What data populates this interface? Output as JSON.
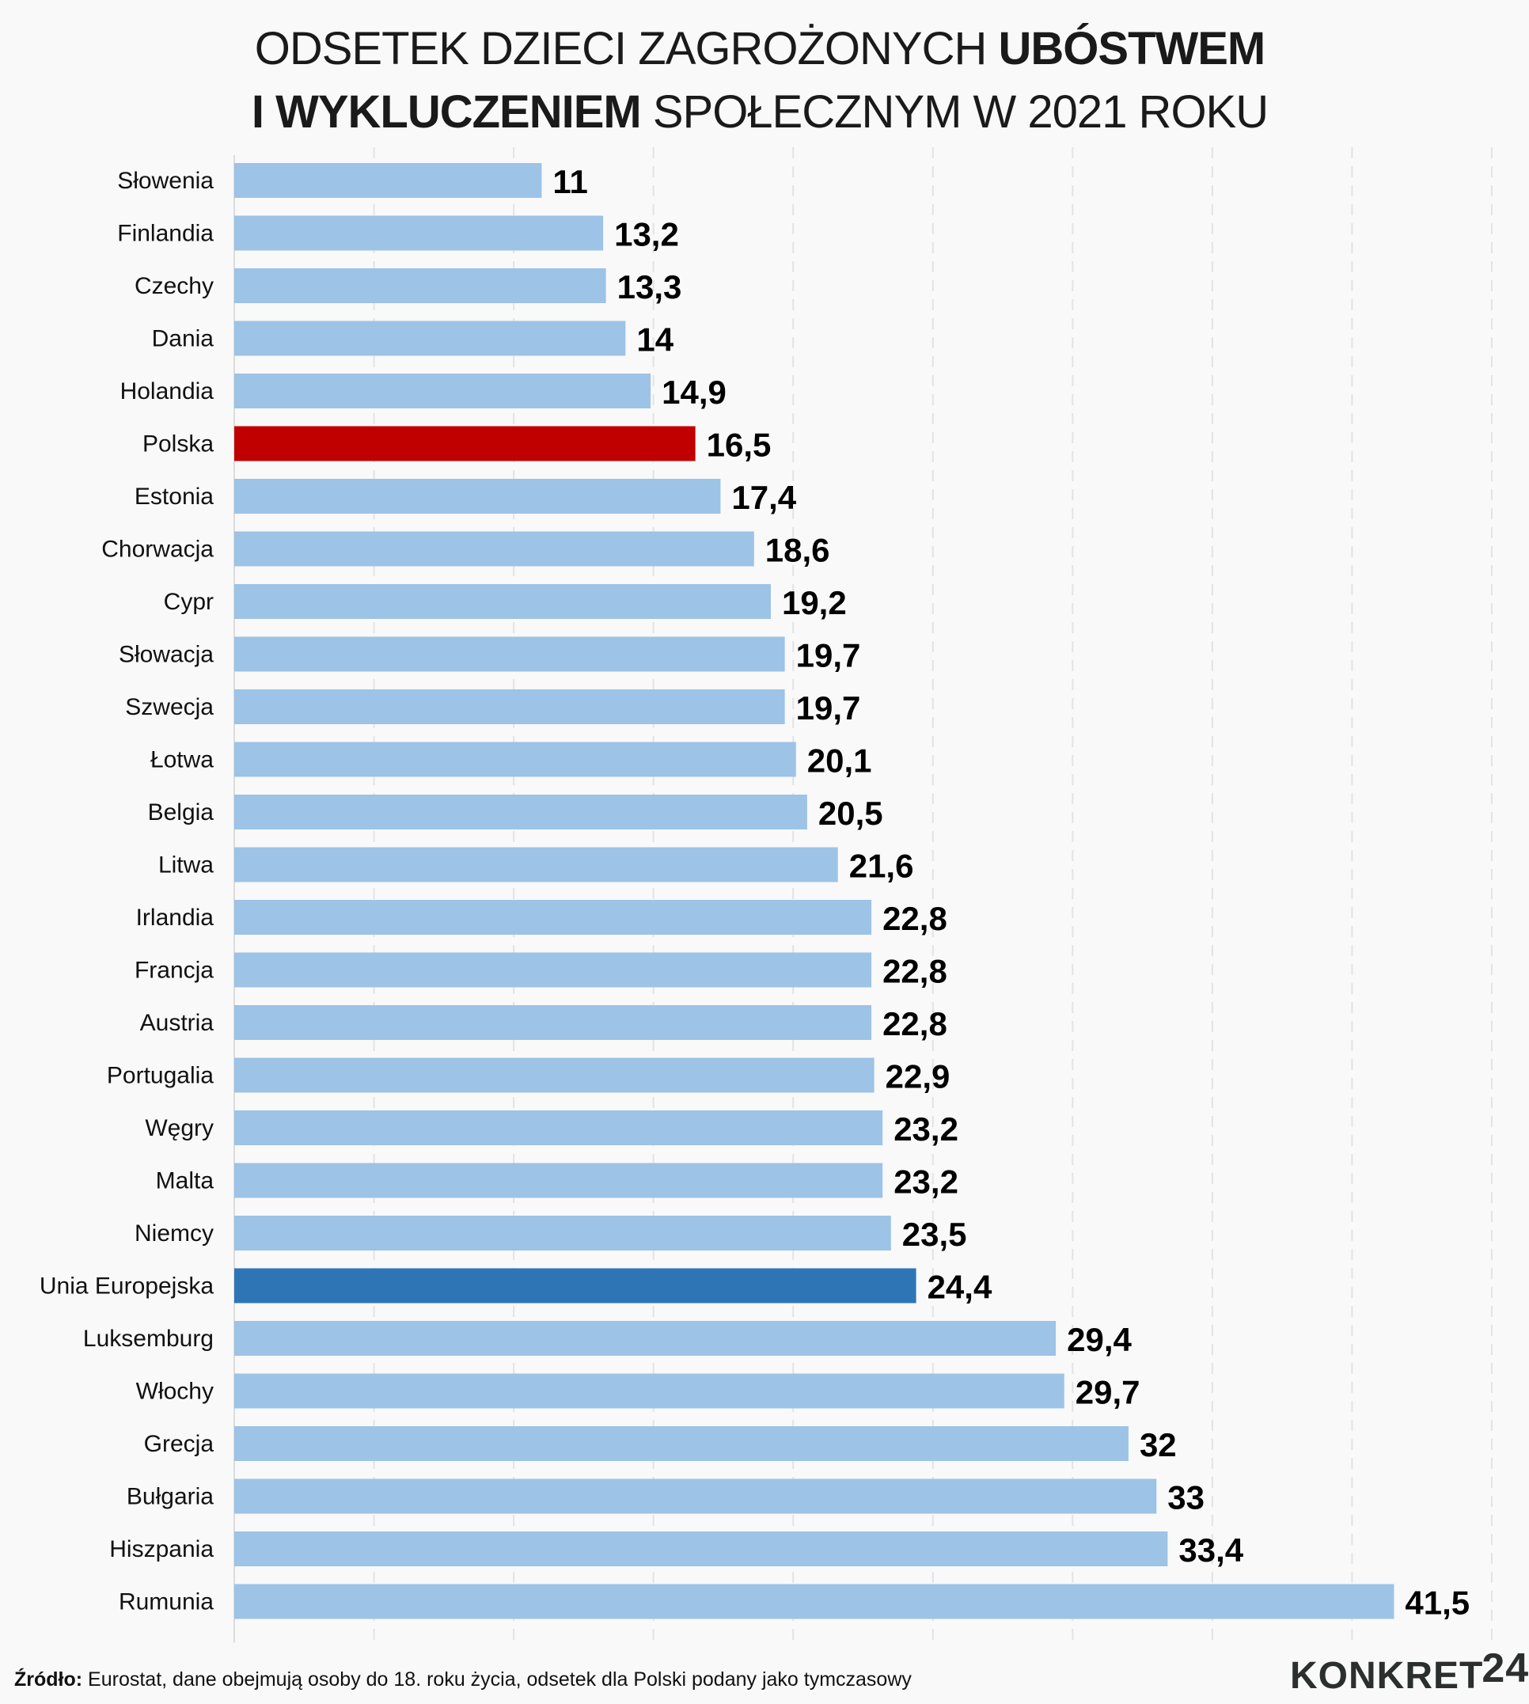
{
  "title": {
    "line1_light": "ODSETEK DZIECI ZAGROŻONYCH ",
    "line1_bold": "UBÓSTWEM",
    "line2_bold": "I WYKLUCZENIEM",
    "line2_light": " SPOŁECZNYM W 2021 ROKU"
  },
  "footer": {
    "source_label": "Źródło:",
    "source_text": " Eurostat, dane obejmują osoby do 18. roku życia, odsetek dla Polski podany jako tymczasowy"
  },
  "logo": {
    "text": "KONKRET",
    "number": "24"
  },
  "colors": {
    "default_bar": "#9dc3e6",
    "poland_bar": "#c00000",
    "eu_bar": "#2e75b6",
    "grid": "#e3e3e3"
  },
  "chart_data": {
    "type": "bar",
    "orientation": "horizontal",
    "xlim": [
      0,
      45
    ],
    "grid": true,
    "categories": [
      "Słowenia",
      "Finlandia",
      "Czechy",
      "Dania",
      "Holandia",
      "Polska",
      "Estonia",
      "Chorwacja",
      "Cypr",
      "Słowacja",
      "Szwecja",
      "Łotwa",
      "Belgia",
      "Litwa",
      "Irlandia",
      "Francja",
      "Austria",
      "Portugalia",
      "Węgry",
      "Malta",
      "Niemcy",
      "Unia Europejska",
      "Luksemburg",
      "Włochy",
      "Grecja",
      "Bułgaria",
      "Hiszpania",
      "Rumunia"
    ],
    "values": [
      11,
      13.2,
      13.3,
      14,
      14.9,
      16.5,
      17.4,
      18.6,
      19.2,
      19.7,
      19.7,
      20.1,
      20.5,
      21.6,
      22.8,
      22.8,
      22.8,
      22.9,
      23.2,
      23.2,
      23.5,
      24.4,
      29.4,
      29.7,
      32,
      33,
      33.4,
      41.5
    ],
    "value_labels": [
      "11",
      "13,2",
      "13,3",
      "14",
      "14,9",
      "16,5",
      "17,4",
      "18,6",
      "19,2",
      "19,7",
      "19,7",
      "20,1",
      "20,5",
      "21,6",
      "22,8",
      "22,8",
      "22,8",
      "22,9",
      "23,2",
      "23,2",
      "23,5",
      "24,4",
      "29,4",
      "29,7",
      "32",
      "33",
      "33,4",
      "41,5"
    ],
    "highlight": {
      "Polska": "#c00000",
      "Unia Europejska": "#2e75b6"
    }
  }
}
